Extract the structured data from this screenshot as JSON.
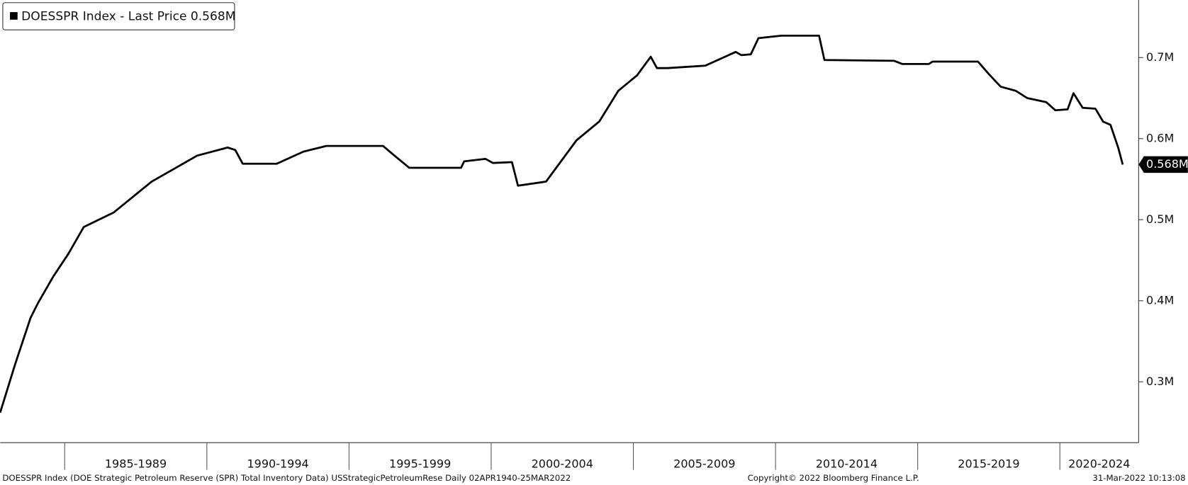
{
  "chart_data": {
    "type": "line",
    "series": [
      {
        "name": "DOESSPR Index - Last Price 0.568M",
        "color": "#000000",
        "values": [
          0.262,
          0.322,
          0.379,
          0.397,
          0.43,
          0.458,
          0.491,
          0.509,
          0.547,
          0.579,
          0.589,
          0.586,
          0.569,
          0.569,
          0.584,
          0.591,
          0.591,
          0.579,
          0.564,
          0.564,
          0.572,
          0.575,
          0.57,
          0.571,
          0.542,
          0.547,
          0.598,
          0.621,
          0.659,
          0.678,
          0.701,
          0.687,
          0.687,
          0.69,
          0.707,
          0.703,
          0.704,
          0.724,
          0.727,
          0.727,
          0.697,
          0.696,
          0.692,
          0.692,
          0.695,
          0.695,
          0.679,
          0.664,
          0.659,
          0.65,
          0.645,
          0.635,
          0.636,
          0.656,
          0.638,
          0.637,
          0.621,
          0.617,
          0.589,
          0.568
        ]
      }
    ],
    "x": [
      1982.73,
      1983.26,
      1983.8,
      1984.06,
      1984.6,
      1985.13,
      1985.67,
      1986.73,
      1988.06,
      1989.66,
      1990.73,
      1991.0,
      1991.26,
      1992.46,
      1993.4,
      1994.2,
      1996.2,
      1996.6,
      1997.12,
      1998.94,
      1999.05,
      1999.8,
      2000.06,
      2000.73,
      2000.94,
      2001.93,
      2003.0,
      2003.8,
      2004.47,
      2005.13,
      2005.61,
      2005.83,
      2006.2,
      2007.53,
      2008.6,
      2008.8,
      2009.13,
      2009.4,
      2010.2,
      2011.53,
      2011.72,
      2014.17,
      2014.46,
      2015.39,
      2015.52,
      2017.12,
      2017.52,
      2017.92,
      2018.45,
      2018.85,
      2019.52,
      2019.84,
      2020.27,
      2020.48,
      2020.8,
      2021.25,
      2021.52,
      2021.78,
      2022.05,
      2022.21
    ],
    "last_price_label": "0.568M",
    "xlim": [
      1982.73,
      2022.77
    ],
    "xticks": [
      {
        "value": 1985,
        "label": "1985-1989"
      },
      {
        "value": 1990,
        "label": "1990-1994"
      },
      {
        "value": 1995,
        "label": "1995-1999"
      },
      {
        "value": 2000,
        "label": "2000-2004"
      },
      {
        "value": 2005,
        "label": "2005-2009"
      },
      {
        "value": 2010,
        "label": "2010-2014"
      },
      {
        "value": 2015,
        "label": "2015-2019"
      },
      {
        "value": 2020,
        "label": "2020-2024"
      }
    ],
    "ylim": [
      0.225,
      0.771
    ],
    "yticks": [
      {
        "value": 0.3,
        "label": "0.3M"
      },
      {
        "value": 0.4,
        "label": "0.4M"
      },
      {
        "value": 0.5,
        "label": "0.5M"
      },
      {
        "value": 0.6,
        "label": "0.6M"
      },
      {
        "value": 0.7,
        "label": "0.7M"
      }
    ],
    "y_axis_side": "right",
    "footer": {
      "source": "DOESSPR Index (DOE Strategic Petroleum Reserve (SPR) Total Inventory Data) USStrategicPetroleumRese  Daily 02APR1940-25MAR2022",
      "copyright": "Copyright© 2022 Bloomberg Finance L.P.",
      "timestamp": "31-Mar-2022 10:13:08"
    }
  }
}
